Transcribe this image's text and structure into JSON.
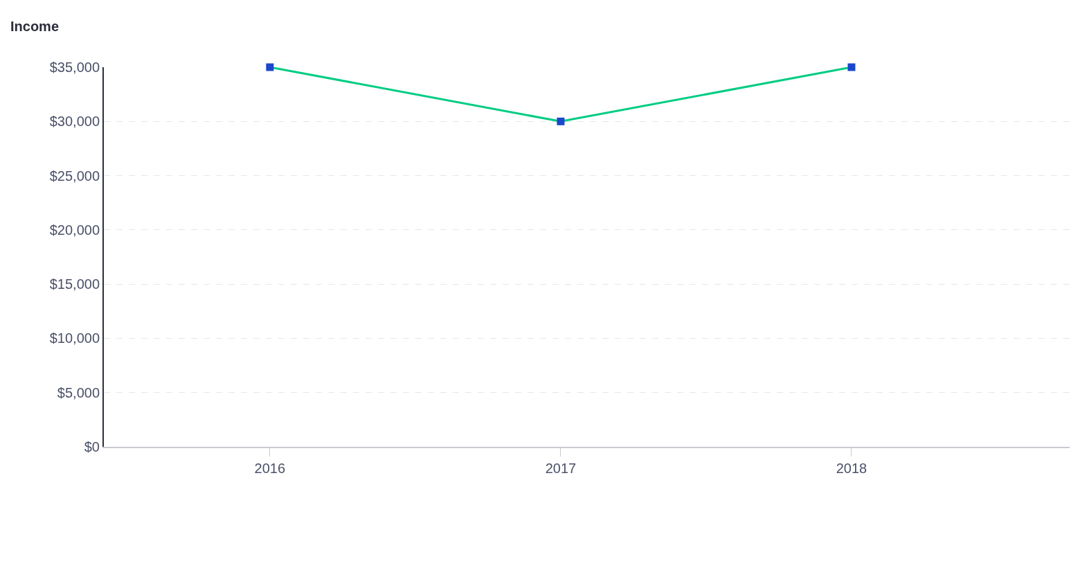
{
  "chart_data": {
    "type": "line",
    "ylabel": "Income",
    "categories": [
      "2016",
      "2017",
      "2018"
    ],
    "series": [
      {
        "color": "#00cc83",
        "values": [
          35000,
          30000,
          35000
        ]
      }
    ],
    "marker": "square",
    "line_style": "solid",
    "grid": "y",
    "ylim": [
      0,
      35000
    ],
    "yticks": [
      {
        "value": 0,
        "label": "$0"
      },
      {
        "value": 5000,
        "label": "$5,000"
      },
      {
        "value": 10000,
        "label": "$10,000"
      },
      {
        "value": 15000,
        "label": "$15,000"
      },
      {
        "value": 20000,
        "label": "$20,000"
      },
      {
        "value": 25000,
        "label": "$25,000"
      },
      {
        "value": 30000,
        "label": "$30,000"
      },
      {
        "value": 35000,
        "label": "$35,000"
      }
    ]
  }
}
